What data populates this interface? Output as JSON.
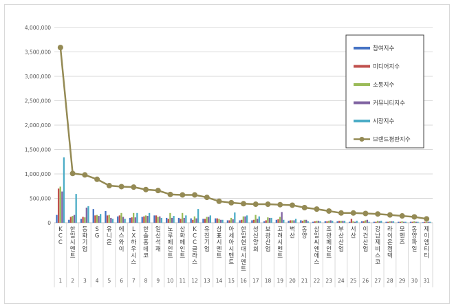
{
  "chart_data": {
    "type": "bar",
    "ylim": [
      0,
      4000000
    ],
    "y_ticks": [
      "0",
      "500,000",
      "1,000,000",
      "1,500,000",
      "2,000,000",
      "2,500,000",
      "3,000,000",
      "3,500,000",
      "4,000,000"
    ],
    "y_tick_values": [
      0,
      500000,
      1000000,
      1500000,
      2000000,
      2500000,
      3000000,
      3500000,
      4000000
    ],
    "grid": true,
    "legend_position": "top-right",
    "categories": [
      "KCC",
      "한일시멘트",
      "동화기업",
      "SG",
      "유니온",
      "에스와이",
      "LX하우시스",
      "한솔홈데코",
      "일신석재",
      "노루페인트",
      "삼화페인트",
      "KCC글라스",
      "유진기업",
      "삼표시멘트",
      "아세아시멘트",
      "한일현대시멘트",
      "성신양회",
      "보광산업",
      "고려시멘트",
      "벽산",
      "동양",
      "삼일씨엔에스",
      "조광페인트",
      "부산산업",
      "서산",
      "이건산업",
      "강남제비스코",
      "라이온켐텍",
      "모헨즈",
      "동양파일",
      "제이엠티티"
    ],
    "category_numbers": [
      "1",
      "2",
      "3",
      "4",
      "5",
      "6",
      "7",
      "8",
      "9",
      "10",
      "11",
      "12",
      "13",
      "14",
      "15",
      "16",
      "17",
      "18",
      "19",
      "20",
      "21",
      "22",
      "23",
      "24",
      "25",
      "26",
      "27",
      "28",
      "29",
      "30",
      "31"
    ],
    "series": [
      {
        "name": "참여지수",
        "color": "#4472c4",
        "kind": "bar",
        "values": [
          160000,
          60000,
          80000,
          280000,
          240000,
          130000,
          100000,
          120000,
          150000,
          100000,
          100000,
          90000,
          80000,
          90000,
          50000,
          50000,
          50000,
          30000,
          60000,
          40000,
          50000,
          20000,
          30000,
          30000,
          20000,
          30000,
          20000,
          20000,
          20000,
          20000,
          10000
        ]
      },
      {
        "name": "미디어지수",
        "color": "#c0504d",
        "kind": "bar",
        "values": [
          700000,
          120000,
          120000,
          150000,
          150000,
          150000,
          110000,
          130000,
          150000,
          80000,
          80000,
          60000,
          80000,
          90000,
          50000,
          60000,
          60000,
          50000,
          70000,
          50000,
          40000,
          30000,
          30000,
          40000,
          80000,
          30000,
          20000,
          20000,
          20000,
          20000,
          20000
        ]
      },
      {
        "name": "소통지수",
        "color": "#9bbb59",
        "kind": "bar",
        "values": [
          740000,
          140000,
          110000,
          160000,
          160000,
          200000,
          200000,
          150000,
          120000,
          200000,
          200000,
          130000,
          120000,
          80000,
          100000,
          130000,
          160000,
          110000,
          120000,
          50000,
          60000,
          40000,
          40000,
          40000,
          30000,
          50000,
          40000,
          30000,
          30000,
          30000,
          20000
        ]
      },
      {
        "name": "커뮤니티지수",
        "color": "#8064a2",
        "kind": "bar",
        "values": [
          640000,
          160000,
          310000,
          140000,
          100000,
          120000,
          110000,
          140000,
          130000,
          100000,
          100000,
          90000,
          120000,
          60000,
          70000,
          130000,
          80000,
          100000,
          220000,
          50000,
          60000,
          40000,
          50000,
          40000,
          20000,
          60000,
          30000,
          30000,
          20000,
          20000,
          20000
        ]
      },
      {
        "name": "시장지수",
        "color": "#4bacc6",
        "kind": "bar",
        "values": [
          1340000,
          590000,
          340000,
          180000,
          80000,
          80000,
          200000,
          200000,
          100000,
          140000,
          150000,
          280000,
          150000,
          60000,
          210000,
          150000,
          130000,
          100000,
          60000,
          80000,
          30000,
          30000,
          40000,
          40000,
          40000,
          20000,
          40000,
          30000,
          20000,
          20000,
          20000
        ]
      },
      {
        "name": "브랜드평판지수",
        "color": "#948a54",
        "kind": "line",
        "values": [
          3590000,
          1010000,
          980000,
          890000,
          760000,
          740000,
          730000,
          680000,
          660000,
          580000,
          570000,
          570000,
          520000,
          440000,
          410000,
          390000,
          380000,
          380000,
          370000,
          360000,
          310000,
          280000,
          240000,
          200000,
          200000,
          190000,
          180000,
          160000,
          140000,
          120000,
          80000
        ]
      }
    ]
  }
}
